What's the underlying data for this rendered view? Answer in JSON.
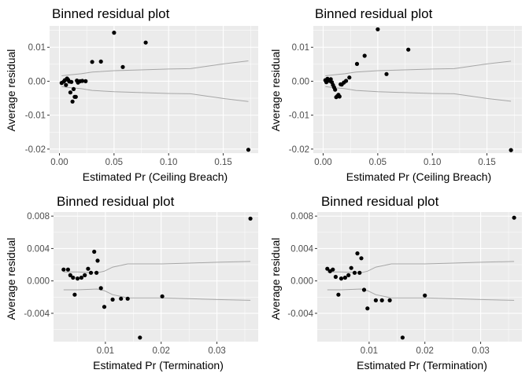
{
  "chart_data": [
    {
      "type": "scatter",
      "title": "Binned residual plot",
      "xlabel": "Estimated  Pr (Ceiling Breach)",
      "ylabel": "Average residual",
      "xlim": [
        -0.009,
        0.182
      ],
      "ylim": [
        -0.0212,
        0.0163
      ],
      "xticks": [
        0.0,
        0.05,
        0.1,
        0.15
      ],
      "xtick_labels": [
        "0.00",
        "0.05",
        "0.10",
        "0.15"
      ],
      "yticks": [
        -0.02,
        -0.01,
        0.0,
        0.01
      ],
      "ytick_labels": [
        "-0.02",
        "-0.01",
        "0.00",
        "0.01"
      ],
      "grid": true,
      "x": [
        0.002,
        0.004,
        0.005,
        0.006,
        0.007,
        0.008,
        0.009,
        0.01,
        0.011,
        0.012,
        0.013,
        0.014,
        0.015,
        0.016,
        0.017,
        0.019,
        0.021,
        0.024,
        0.03,
        0.038,
        0.05,
        0.058,
        0.079,
        0.173
      ],
      "y": [
        -0.0005,
        -0.0001,
        0.0003,
        -0.0011,
        0.0008,
        0.0004,
        -0.0001,
        -0.0033,
        -0.0002,
        -0.006,
        -0.0023,
        -0.0046,
        -0.0046,
        0.0002,
        -0.0004,
        0.0,
        0.0001,
        0.0,
        0.0057,
        0.0058,
        0.0143,
        0.0042,
        0.0114,
        -0.0202
      ],
      "band": {
        "x": [
          0.002,
          0.01,
          0.02,
          0.03,
          0.05,
          0.08,
          0.1,
          0.12,
          0.15,
          0.173
        ],
        "upper": [
          0.0016,
          0.0019,
          0.0022,
          0.0027,
          0.0031,
          0.0034,
          0.0036,
          0.0037,
          0.0051,
          0.006
        ],
        "lower": [
          -0.0016,
          -0.0019,
          -0.0022,
          -0.0027,
          -0.0031,
          -0.0034,
          -0.0036,
          -0.0037,
          -0.0051,
          -0.006
        ]
      }
    },
    {
      "type": "scatter",
      "title": "Binned residual plot",
      "xlabel": "Estimated  Pr (Ceiling Breach)",
      "ylabel": "Average residual",
      "xlim": [
        -0.009,
        0.182
      ],
      "ylim": [
        -0.0212,
        0.0163
      ],
      "xticks": [
        0.0,
        0.05,
        0.1,
        0.15
      ],
      "xtick_labels": [
        "0.00",
        "0.05",
        "0.10",
        "0.15"
      ],
      "yticks": [
        -0.02,
        -0.01,
        0.0,
        0.01
      ],
      "ytick_labels": [
        "-0.02",
        "-0.01",
        "0.00",
        "0.01"
      ],
      "grid": true,
      "x": [
        0.002,
        0.003,
        0.004,
        0.006,
        0.007,
        0.008,
        0.009,
        0.01,
        0.011,
        0.012,
        0.013,
        0.014,
        0.015,
        0.016,
        0.017,
        0.019,
        0.021,
        0.024,
        0.031,
        0.038,
        0.05,
        0.058,
        0.078,
        0.172
      ],
      "y": [
        0.0003,
        -0.0003,
        0.0007,
        0.0001,
        0.0006,
        -0.0003,
        -0.0011,
        -0.0018,
        -0.0025,
        -0.0047,
        -0.0044,
        -0.004,
        -0.0045,
        -0.0009,
        -0.001,
        -0.0004,
        0.0001,
        0.0011,
        0.0051,
        0.0075,
        0.0153,
        0.0021,
        0.0093,
        -0.0203
      ],
      "band": {
        "x": [
          0.002,
          0.01,
          0.02,
          0.03,
          0.05,
          0.08,
          0.1,
          0.12,
          0.15,
          0.172
        ],
        "upper": [
          0.0016,
          0.0019,
          0.0022,
          0.0027,
          0.0031,
          0.0034,
          0.0036,
          0.0037,
          0.0051,
          0.0059
        ],
        "lower": [
          -0.0016,
          -0.0019,
          -0.0022,
          -0.0027,
          -0.0031,
          -0.0034,
          -0.0036,
          -0.0037,
          -0.0051,
          -0.0059
        ]
      }
    },
    {
      "type": "scatter",
      "title": "Binned residual plot",
      "xlabel": "Estimated  Pr (Termination)",
      "ylabel": "Average residual",
      "xlim": [
        0.0007,
        0.0374
      ],
      "ylim": [
        -0.0075,
        0.0085
      ],
      "xticks": [
        0.01,
        0.02,
        0.03
      ],
      "xtick_labels": [
        "0.01",
        "0.02",
        "0.03"
      ],
      "yticks": [
        -0.004,
        0.0,
        0.004,
        0.008
      ],
      "ytick_labels": [
        "-0.004",
        "0.000",
        "0.004",
        "0.008"
      ],
      "grid": true,
      "x": [
        0.0025,
        0.0033,
        0.0037,
        0.0042,
        0.0045,
        0.005,
        0.0057,
        0.0063,
        0.0069,
        0.0074,
        0.008,
        0.0084,
        0.0086,
        0.0092,
        0.0098,
        0.0113,
        0.0128,
        0.014,
        0.0162,
        0.0202,
        0.036
      ],
      "y": [
        0.0014,
        0.0014,
        0.0007,
        0.0004,
        -0.0017,
        0.0003,
        0.0004,
        0.0007,
        0.0015,
        0.001,
        0.0036,
        0.001,
        0.0025,
        -0.0009,
        -0.0032,
        -0.0023,
        -0.0022,
        -0.0022,
        -0.007,
        -0.0019,
        0.0077
      ],
      "band": {
        "x": [
          0.0025,
          0.005,
          0.0085,
          0.0098,
          0.0113,
          0.014,
          0.0202,
          0.025,
          0.03,
          0.036
        ],
        "upper": [
          0.0011,
          0.0011,
          0.001,
          0.0012,
          0.0017,
          0.0021,
          0.0021,
          0.0022,
          0.0023,
          0.0024
        ],
        "lower": [
          -0.0011,
          -0.0011,
          -0.001,
          -0.0012,
          -0.0017,
          -0.0021,
          -0.0021,
          -0.0022,
          -0.0023,
          -0.0024
        ]
      }
    },
    {
      "type": "scatter",
      "title": "Binned residual plot",
      "xlabel": "Estimated  Pr (Termination)",
      "ylabel": "Average residual",
      "xlim": [
        0.0007,
        0.0374
      ],
      "ylim": [
        -0.0075,
        0.0085
      ],
      "xticks": [
        0.01,
        0.02,
        0.03
      ],
      "xtick_labels": [
        "0.01",
        "0.02",
        "0.03"
      ],
      "yticks": [
        -0.004,
        0.0,
        0.004,
        0.008
      ],
      "ytick_labels": [
        "-0.004",
        "0.000",
        "0.004",
        "0.008"
      ],
      "grid": true,
      "x": [
        0.0025,
        0.003,
        0.0035,
        0.004,
        0.0045,
        0.005,
        0.0057,
        0.0063,
        0.0068,
        0.0074,
        0.0079,
        0.0083,
        0.0086,
        0.0091,
        0.0097,
        0.0112,
        0.0123,
        0.0137,
        0.016,
        0.02,
        0.036
      ],
      "y": [
        0.0015,
        0.0012,
        0.0014,
        0.0005,
        -0.0017,
        0.0003,
        0.0004,
        0.0007,
        0.0016,
        0.001,
        0.0034,
        0.001,
        0.0028,
        -0.0011,
        -0.0034,
        -0.0024,
        -0.0024,
        -0.0024,
        -0.007,
        -0.0018,
        0.0078
      ],
      "band": {
        "x": [
          0.0025,
          0.005,
          0.0085,
          0.0097,
          0.0112,
          0.014,
          0.02,
          0.025,
          0.03,
          0.036
        ],
        "upper": [
          0.0011,
          0.0011,
          0.001,
          0.0012,
          0.0017,
          0.0021,
          0.0021,
          0.0022,
          0.0023,
          0.0024
        ],
        "lower": [
          -0.0011,
          -0.0011,
          -0.001,
          -0.0012,
          -0.0017,
          -0.0021,
          -0.0021,
          -0.0022,
          -0.0023,
          -0.0024
        ]
      }
    }
  ]
}
